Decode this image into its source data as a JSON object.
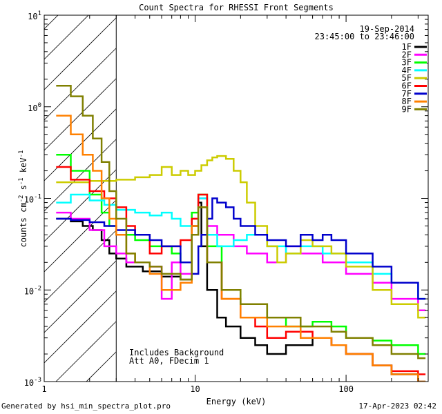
{
  "chart_data": {
    "type": "line",
    "title": "Count Spectra for RHESSI Front Segments",
    "xlabel": "Energy (keV)",
    "ylabel": "counts cm",
    "ylabel_sup1": "-2",
    "ylabel_mid": " s",
    "ylabel_sup2": "-1",
    "ylabel_tail": " keV",
    "ylabel_sup3": "-1",
    "x_scale": "log",
    "y_scale": "log",
    "xlim": [
      1,
      350
    ],
    "ylim": [
      0.001,
      10
    ],
    "x_ticks": [
      {
        "value": 1,
        "label": "1"
      },
      {
        "value": 10,
        "label": "10"
      },
      {
        "value": 100,
        "label": "100"
      }
    ],
    "y_ticks": [
      {
        "value": 10,
        "base": "10",
        "exp": "1"
      },
      {
        "value": 1,
        "base": "10",
        "exp": "0"
      },
      {
        "value": 0.1,
        "base": "10",
        "exp": "-1"
      },
      {
        "value": 0.01,
        "base": "10",
        "exp": "-2"
      },
      {
        "value": 0.001,
        "base": "10",
        "exp": "-3"
      }
    ],
    "hatched_region_keV": [
      1,
      3
    ],
    "date": "19-Sep-2014",
    "time_range": "23:45:00 to 23:46:00",
    "annotations": [
      "Includes Background",
      "Att A0, FDecim 1"
    ],
    "series": [
      {
        "name": "1F",
        "color": "#000000",
        "points": [
          [
            1.2,
            0.06
          ],
          [
            1.5,
            0.056
          ],
          [
            1.8,
            0.05
          ],
          [
            2.1,
            0.045
          ],
          [
            2.4,
            0.035
          ],
          [
            2.7,
            0.025
          ],
          [
            3.0,
            0.022
          ],
          [
            3.5,
            0.018
          ],
          [
            4.5,
            0.016
          ],
          [
            6,
            0.014
          ],
          [
            8,
            0.013
          ],
          [
            9.5,
            0.05
          ],
          [
            10.5,
            0.09
          ],
          [
            11,
            0.03
          ],
          [
            12,
            0.01
          ],
          [
            14,
            0.005
          ],
          [
            16,
            0.004
          ],
          [
            20,
            0.003
          ],
          [
            25,
            0.0025
          ],
          [
            30,
            0.002
          ],
          [
            40,
            0.0025
          ],
          [
            60,
            0.003
          ],
          [
            80,
            0.0025
          ],
          [
            100,
            0.002
          ],
          [
            150,
            0.0015
          ],
          [
            200,
            0.0012
          ],
          [
            300,
            0.001
          ]
        ]
      },
      {
        "name": "2F",
        "color": "#ff00ff",
        "points": [
          [
            1.2,
            0.07
          ],
          [
            1.5,
            0.06
          ],
          [
            2.0,
            0.045
          ],
          [
            2.5,
            0.03
          ],
          [
            3.0,
            0.025
          ],
          [
            3.5,
            0.02
          ],
          [
            5,
            0.018
          ],
          [
            6,
            0.008
          ],
          [
            7,
            0.02
          ],
          [
            8,
            0.015
          ],
          [
            9.5,
            0.06
          ],
          [
            10.5,
            0.1
          ],
          [
            12,
            0.05
          ],
          [
            14,
            0.04
          ],
          [
            18,
            0.03
          ],
          [
            22,
            0.025
          ],
          [
            30,
            0.02
          ],
          [
            40,
            0.03
          ],
          [
            50,
            0.025
          ],
          [
            70,
            0.02
          ],
          [
            100,
            0.015
          ],
          [
            150,
            0.012
          ],
          [
            200,
            0.008
          ],
          [
            300,
            0.006
          ]
        ]
      },
      {
        "name": "3F",
        "color": "#00ff00",
        "points": [
          [
            1.2,
            0.3
          ],
          [
            1.5,
            0.2
          ],
          [
            2.0,
            0.11
          ],
          [
            2.4,
            0.07
          ],
          [
            2.7,
            0.05
          ],
          [
            3.0,
            0.04
          ],
          [
            4,
            0.035
          ],
          [
            5,
            0.03
          ],
          [
            7,
            0.025
          ],
          [
            8,
            0.02
          ],
          [
            9.5,
            0.07
          ],
          [
            10.5,
            0.11
          ],
          [
            12,
            0.03
          ],
          [
            15,
            0.01
          ],
          [
            20,
            0.007
          ],
          [
            30,
            0.005
          ],
          [
            40,
            0.004
          ],
          [
            60,
            0.0045
          ],
          [
            80,
            0.004
          ],
          [
            100,
            0.003
          ],
          [
            150,
            0.0028
          ],
          [
            200,
            0.0025
          ],
          [
            300,
            0.002
          ]
        ]
      },
      {
        "name": "4F",
        "color": "#00ffff",
        "points": [
          [
            1.2,
            0.09
          ],
          [
            1.5,
            0.11
          ],
          [
            2.0,
            0.095
          ],
          [
            2.5,
            0.085
          ],
          [
            3.0,
            0.075
          ],
          [
            4,
            0.07
          ],
          [
            5,
            0.065
          ],
          [
            6,
            0.07
          ],
          [
            7,
            0.06
          ],
          [
            8,
            0.05
          ],
          [
            9.5,
            0.04
          ],
          [
            10.5,
            0.1
          ],
          [
            12,
            0.04
          ],
          [
            14,
            0.03
          ],
          [
            18,
            0.035
          ],
          [
            22,
            0.04
          ],
          [
            30,
            0.03
          ],
          [
            40,
            0.025
          ],
          [
            50,
            0.03
          ],
          [
            70,
            0.025
          ],
          [
            100,
            0.02
          ],
          [
            150,
            0.015
          ],
          [
            200,
            0.012
          ],
          [
            300,
            0.008
          ]
        ]
      },
      {
        "name": "5F",
        "color": "#cccc00",
        "points": [
          [
            1.2,
            0.15
          ],
          [
            1.5,
            0.15
          ],
          [
            2.0,
            0.155
          ],
          [
            2.5,
            0.155
          ],
          [
            3.0,
            0.16
          ],
          [
            4,
            0.17
          ],
          [
            5,
            0.18
          ],
          [
            6,
            0.22
          ],
          [
            7,
            0.18
          ],
          [
            8,
            0.2
          ],
          [
            9,
            0.18
          ],
          [
            10,
            0.2
          ],
          [
            11,
            0.23
          ],
          [
            12,
            0.26
          ],
          [
            13,
            0.28
          ],
          [
            14,
            0.29
          ],
          [
            16,
            0.27
          ],
          [
            18,
            0.2
          ],
          [
            20,
            0.15
          ],
          [
            22,
            0.09
          ],
          [
            25,
            0.05
          ],
          [
            30,
            0.03
          ],
          [
            35,
            0.02
          ],
          [
            40,
            0.025
          ],
          [
            50,
            0.035
          ],
          [
            60,
            0.03
          ],
          [
            80,
            0.025
          ],
          [
            100,
            0.018
          ],
          [
            150,
            0.01
          ],
          [
            200,
            0.007
          ],
          [
            300,
            0.005
          ]
        ]
      },
      {
        "name": "6F",
        "color": "#ff0000",
        "points": [
          [
            1.2,
            0.22
          ],
          [
            1.5,
            0.16
          ],
          [
            2.0,
            0.12
          ],
          [
            2.5,
            0.1
          ],
          [
            3.0,
            0.08
          ],
          [
            3.5,
            0.05
          ],
          [
            4,
            0.04
          ],
          [
            5,
            0.025
          ],
          [
            6,
            0.03
          ],
          [
            8,
            0.035
          ],
          [
            9.5,
            0.06
          ],
          [
            10.5,
            0.11
          ],
          [
            12,
            0.02
          ],
          [
            15,
            0.008
          ],
          [
            20,
            0.005
          ],
          [
            25,
            0.004
          ],
          [
            30,
            0.003
          ],
          [
            40,
            0.0035
          ],
          [
            60,
            0.003
          ],
          [
            80,
            0.0025
          ],
          [
            100,
            0.002
          ],
          [
            150,
            0.0015
          ],
          [
            200,
            0.0013
          ],
          [
            300,
            0.0012
          ]
        ]
      },
      {
        "name": "7F",
        "color": "#0000cc",
        "points": [
          [
            1.2,
            0.06
          ],
          [
            1.5,
            0.058
          ],
          [
            2.0,
            0.055
          ],
          [
            2.5,
            0.05
          ],
          [
            3.0,
            0.045
          ],
          [
            4,
            0.04
          ],
          [
            5,
            0.035
          ],
          [
            6,
            0.03
          ],
          [
            8,
            0.02
          ],
          [
            9.5,
            0.015
          ],
          [
            10.5,
            0.03
          ],
          [
            11,
            0.04
          ],
          [
            12,
            0.06
          ],
          [
            13,
            0.1
          ],
          [
            14,
            0.09
          ],
          [
            16,
            0.08
          ],
          [
            18,
            0.06
          ],
          [
            20,
            0.05
          ],
          [
            25,
            0.04
          ],
          [
            30,
            0.035
          ],
          [
            40,
            0.03
          ],
          [
            50,
            0.04
          ],
          [
            60,
            0.035
          ],
          [
            70,
            0.04
          ],
          [
            80,
            0.035
          ],
          [
            100,
            0.025
          ],
          [
            150,
            0.018
          ],
          [
            200,
            0.012
          ],
          [
            300,
            0.008
          ]
        ]
      },
      {
        "name": "8F",
        "color": "#ff8000",
        "points": [
          [
            1.2,
            0.8
          ],
          [
            1.5,
            0.5
          ],
          [
            1.8,
            0.3
          ],
          [
            2.1,
            0.2
          ],
          [
            2.4,
            0.1
          ],
          [
            2.7,
            0.06
          ],
          [
            3.0,
            0.04
          ],
          [
            3.5,
            0.025
          ],
          [
            4,
            0.02
          ],
          [
            5,
            0.015
          ],
          [
            6,
            0.01
          ],
          [
            8,
            0.012
          ],
          [
            9.5,
            0.05
          ],
          [
            10.5,
            0.08
          ],
          [
            12,
            0.02
          ],
          [
            15,
            0.008
          ],
          [
            20,
            0.005
          ],
          [
            30,
            0.004
          ],
          [
            50,
            0.003
          ],
          [
            80,
            0.0025
          ],
          [
            100,
            0.002
          ],
          [
            150,
            0.0015
          ],
          [
            200,
            0.0012
          ],
          [
            300,
            0.001
          ]
        ]
      },
      {
        "name": "9F",
        "color": "#808000",
        "points": [
          [
            1.2,
            1.7
          ],
          [
            1.5,
            1.3
          ],
          [
            1.8,
            0.8
          ],
          [
            2.1,
            0.45
          ],
          [
            2.4,
            0.25
          ],
          [
            2.7,
            0.12
          ],
          [
            3.0,
            0.06
          ],
          [
            3.5,
            0.025
          ],
          [
            4,
            0.02
          ],
          [
            5,
            0.018
          ],
          [
            6,
            0.015
          ],
          [
            8,
            0.013
          ],
          [
            9.5,
            0.04
          ],
          [
            10.5,
            0.08
          ],
          [
            12,
            0.02
          ],
          [
            15,
            0.01
          ],
          [
            20,
            0.007
          ],
          [
            30,
            0.005
          ],
          [
            50,
            0.004
          ],
          [
            80,
            0.0035
          ],
          [
            100,
            0.003
          ],
          [
            150,
            0.0025
          ],
          [
            200,
            0.002
          ],
          [
            300,
            0.0018
          ]
        ]
      }
    ]
  },
  "footer": {
    "left": "Generated by hsi_min_spectra_plot.pro",
    "right": "17-Apr-2023 02:42"
  }
}
